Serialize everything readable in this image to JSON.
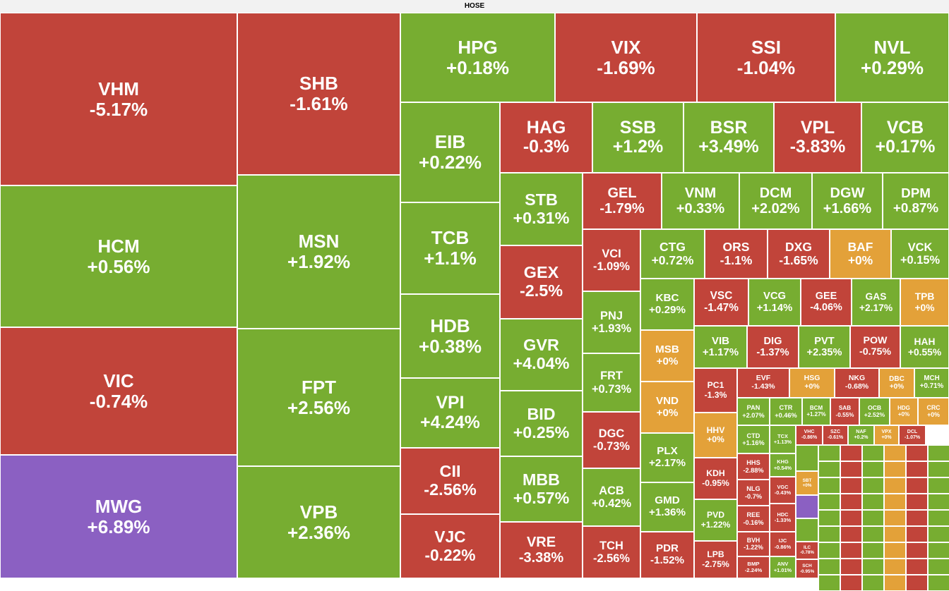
{
  "chart_data": {
    "type": "treemap",
    "title": "HOSE",
    "categories": [
      "VHM",
      "HCM",
      "VIC",
      "MWG",
      "SHB",
      "MSN",
      "FPT",
      "VPB",
      "HPG",
      "VIX",
      "SSI",
      "NVL",
      "EIB",
      "TCB",
      "HDB",
      "VPI",
      "CII",
      "VJC",
      "HAG",
      "SSB",
      "BSR",
      "VPL",
      "VCB",
      "STB",
      "GEX",
      "GVR",
      "BID",
      "MBB",
      "VRE",
      "GEL",
      "VNM",
      "DCM",
      "DGW",
      "DPM",
      "VCI",
      "PNJ",
      "FRT",
      "DGC",
      "ACB",
      "TCH",
      "CTG",
      "ORS",
      "DXG",
      "BAF",
      "VCK",
      "KBC",
      "MSB",
      "VND",
      "PLX",
      "GMD",
      "PDR",
      "VSC",
      "VCG",
      "GEE",
      "GAS",
      "TPB",
      "VIB",
      "DIG",
      "PVT",
      "POW",
      "HAH",
      "PC1",
      "HHV",
      "KDH",
      "PVD",
      "LPB",
      "EVF",
      "HSG",
      "NKG",
      "DBC",
      "MCH",
      "PAN",
      "CTR",
      "BCM",
      "SAB",
      "OCB",
      "HDG",
      "CRC",
      "CTD",
      "TCX",
      "VHC",
      "SZC",
      "NAF",
      "VPX",
      "DCL",
      "HHS",
      "NLG",
      "REE",
      "BVH",
      "BMP",
      "KHG",
      "VGC",
      "HDC",
      "IJC",
      "ANV",
      "SBT",
      "ILC",
      "SCH"
    ],
    "values": [
      -5.17,
      0.56,
      -0.74,
      6.89,
      -1.61,
      1.92,
      2.56,
      2.36,
      0.18,
      -1.69,
      -1.04,
      0.29,
      0.22,
      1.1,
      0.38,
      4.24,
      -2.56,
      -0.22,
      -0.3,
      1.2,
      3.49,
      -3.83,
      0.17,
      0.31,
      -2.5,
      4.04,
      0.25,
      0.57,
      -3.38,
      -1.79,
      0.33,
      2.02,
      1.66,
      0.87,
      -1.09,
      1.93,
      0.73,
      -0.73,
      0.42,
      -2.56,
      0.72,
      -1.1,
      -1.65,
      0,
      0.15,
      0.29,
      0,
      0,
      2.17,
      1.36,
      -1.52,
      -1.47,
      1.14,
      -4.06,
      2.17,
      0,
      1.17,
      -1.37,
      2.35,
      -0.75,
      0.55,
      -1.3,
      0,
      -0.95,
      1.22,
      -2.75,
      -1.43,
      0,
      -0.68,
      0,
      0.71,
      2.07,
      0.46,
      1.27,
      -0.55,
      2.52,
      0,
      0,
      1.16,
      1.13,
      -0.86,
      -0.61,
      0.2,
      0,
      -1.07,
      -2.88,
      -0.7,
      -0.16,
      -1.22,
      -2.24,
      0.54,
      -0.43,
      -1.33,
      -0.86,
      1.01,
      0,
      -0.78,
      -0.95
    ],
    "value_labels": [
      "-5.17%",
      "+0.56%",
      "-0.74%",
      "+6.89%",
      "-1.61%",
      "+1.92%",
      "+2.56%",
      "+2.36%",
      "+0.18%",
      "-1.69%",
      "-1.04%",
      "+0.29%",
      "+0.22%",
      "+1.1%",
      "+0.38%",
      "+4.24%",
      "-2.56%",
      "-0.22%",
      "-0.3%",
      "+1.2%",
      "+3.49%",
      "-3.83%",
      "+0.17%",
      "+0.31%",
      "-2.5%",
      "+4.04%",
      "+0.25%",
      "+0.57%",
      "-3.38%",
      "-1.79%",
      "+0.33%",
      "+2.02%",
      "+1.66%",
      "+0.87%",
      "-1.09%",
      "+1.93%",
      "+0.73%",
      "-0.73%",
      "+0.42%",
      "-2.56%",
      "+0.72%",
      "-1.1%",
      "-1.65%",
      "+0%",
      "+0.15%",
      "+0.29%",
      "+0%",
      "+0%",
      "+2.17%",
      "+1.36%",
      "-1.52%",
      "-1.47%",
      "+1.14%",
      "-4.06%",
      "+2.17%",
      "+0%",
      "+1.17%",
      "-1.37%",
      "+2.35%",
      "-0.75%",
      "+0.55%",
      "-1.3%",
      "+0%",
      "-0.95%",
      "+1.22%",
      "-2.75%",
      "-1.43%",
      "+0%",
      "-0.68%",
      "+0%",
      "+0.71%",
      "+2.07%",
      "+0.46%",
      "+1.27%",
      "-0.55%",
      "+2.52%",
      "+0%",
      "+0%",
      "+1.16%",
      "+1.13%",
      "-0.86%",
      "-0.61%",
      "+0.2%",
      "+0%",
      "-1.07%",
      "-2.88%",
      "-0.7%",
      "-0.16%",
      "-1.22%",
      "-2.24%",
      "+0.54%",
      "-0.43%",
      "-1.33%",
      "-0.86%",
      "+1.01%",
      "+0%",
      "-0.78%",
      "-0.95%"
    ],
    "colors": [
      "#c1443a",
      "#77ad31",
      "#c1443a",
      "#8b60c2",
      "#c1443a",
      "#77ad31",
      "#77ad31",
      "#77ad31",
      "#77ad31",
      "#c1443a",
      "#c1443a",
      "#77ad31",
      "#77ad31",
      "#77ad31",
      "#77ad31",
      "#77ad31",
      "#c1443a",
      "#c1443a",
      "#c1443a",
      "#77ad31",
      "#77ad31",
      "#c1443a",
      "#77ad31",
      "#77ad31",
      "#c1443a",
      "#77ad31",
      "#77ad31",
      "#77ad31",
      "#c1443a",
      "#c1443a",
      "#77ad31",
      "#77ad31",
      "#77ad31",
      "#77ad31",
      "#c1443a",
      "#77ad31",
      "#77ad31",
      "#c1443a",
      "#77ad31",
      "#c1443a",
      "#77ad31",
      "#c1443a",
      "#c1443a",
      "#e3a139",
      "#77ad31",
      "#77ad31",
      "#e3a139",
      "#e3a139",
      "#77ad31",
      "#77ad31",
      "#c1443a",
      "#c1443a",
      "#77ad31",
      "#c1443a",
      "#77ad31",
      "#e3a139",
      "#77ad31",
      "#c1443a",
      "#77ad31",
      "#c1443a",
      "#77ad31",
      "#c1443a",
      "#e3a139",
      "#c1443a",
      "#77ad31",
      "#c1443a",
      "#c1443a",
      "#e3a139",
      "#c1443a",
      "#e3a139",
      "#77ad31",
      "#77ad31",
      "#77ad31",
      "#77ad31",
      "#c1443a",
      "#77ad31",
      "#e3a139",
      "#e3a139",
      "#77ad31",
      "#77ad31",
      "#c1443a",
      "#c1443a",
      "#77ad31",
      "#e3a139",
      "#c1443a",
      "#c1443a",
      "#c1443a",
      "#c1443a",
      "#c1443a",
      "#c1443a",
      "#77ad31",
      "#c1443a",
      "#c1443a",
      "#c1443a",
      "#77ad31",
      "#e3a139",
      "#c1443a",
      "#c1443a"
    ]
  }
}
